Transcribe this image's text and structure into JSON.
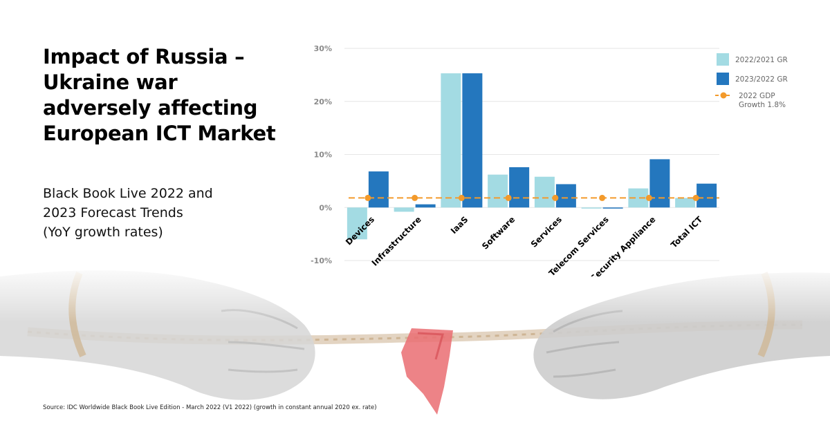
{
  "headline": "Impact of Russia – Ukraine war adversely affecting European ICT Market",
  "subhead_lines": [
    "Black Book Live 2022 and",
    "2023 Forecast Trends",
    "(YoY growth rates)"
  ],
  "source": "Source: IDC Worldwide Black Book Live Edition - March 2022 (V1 2022) (growth in constant annual 2020 ex. rate)",
  "colors": {
    "series_2022": "#a3dbe3",
    "series_2023": "#2477be",
    "gdp_line": "#f39a2b",
    "grid": "#e6e6e6"
  },
  "chart_data": {
    "type": "bar",
    "categories": [
      "Devices",
      "Infrastructure",
      "IaaS",
      "Software",
      "Services",
      "Telecom Services",
      "Security Appliance",
      "Total ICT"
    ],
    "series": [
      {
        "name": "2022/2021 GR",
        "values": [
          -6.0,
          -0.8,
          25.3,
          6.2,
          5.8,
          -0.2,
          3.6,
          1.8
        ]
      },
      {
        "name": "2023/2022 GR",
        "values": [
          6.8,
          0.6,
          25.3,
          7.6,
          4.4,
          -0.2,
          9.1,
          4.5
        ]
      }
    ],
    "reference_line": {
      "name_lines": [
        "2022 GDP",
        "Growth 1.8%"
      ],
      "value": 1.8
    },
    "y_ticks": [
      30,
      20,
      10,
      0,
      -10
    ],
    "y_tick_labels": [
      "30%",
      "20%",
      "10%",
      "0%",
      "-10%"
    ],
    "ylim": [
      -10,
      30
    ],
    "grid": true,
    "legend_position": "top-right"
  }
}
